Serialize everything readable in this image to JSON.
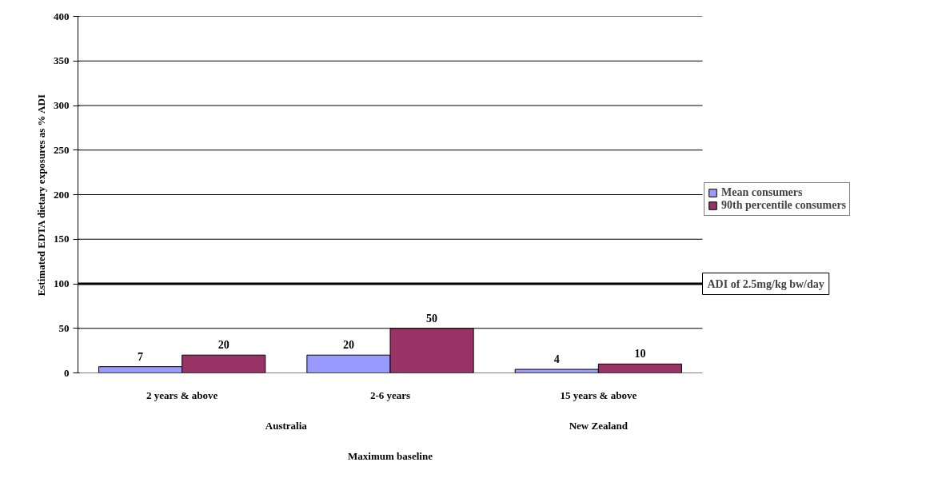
{
  "chart_data": {
    "type": "bar",
    "ylabel": "Estimated EDTA dietary exposures as % ADI",
    "categories": [
      "2 years & above",
      "2-6 years",
      "15 years & above"
    ],
    "series": [
      {
        "name": "Mean consumers",
        "color": "#9999ff",
        "values": [
          7,
          20,
          4
        ]
      },
      {
        "name": "90th percentile consumers",
        "color": "#993366",
        "values": [
          20,
          50,
          10
        ]
      }
    ],
    "ylim": [
      0,
      400
    ],
    "yticks": [
      0,
      50,
      100,
      150,
      200,
      250,
      300,
      350,
      400
    ],
    "grid": "y",
    "legend": "right",
    "data_labels": true,
    "ref_lines": [
      {
        "axis": "y",
        "value": 100,
        "label": "ADI of 2.5mg/kg bw/day",
        "color": "#000000"
      }
    ],
    "annotations": [
      "Australia",
      "New Zealand",
      "Maximum baseline"
    ]
  }
}
